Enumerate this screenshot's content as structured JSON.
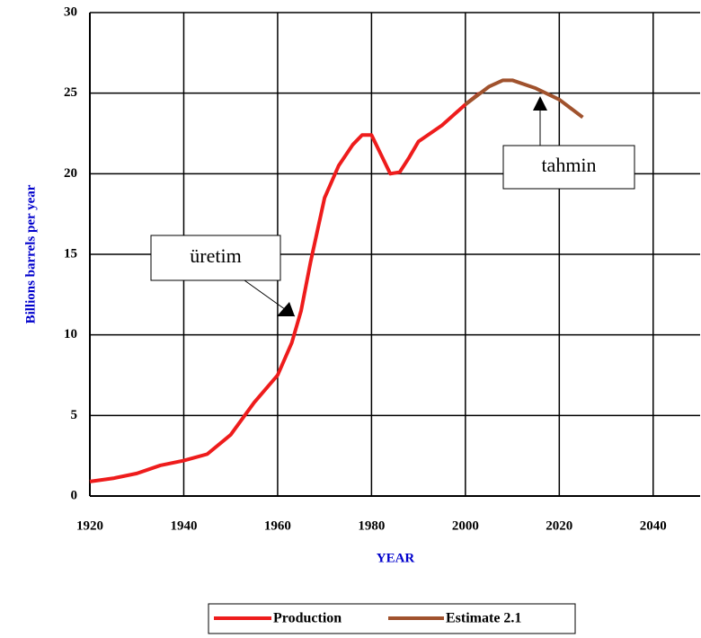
{
  "chart_data": {
    "type": "line",
    "xlabel": "YEAR",
    "ylabel": "Billions barrels per year",
    "xlim": [
      1920,
      2050
    ],
    "xticks": [
      1920,
      1940,
      1960,
      1980,
      2000,
      2020,
      2040
    ],
    "ylim": [
      0,
      30
    ],
    "yticks": [
      0,
      5,
      10,
      15,
      20,
      25,
      30
    ],
    "grid": true,
    "legend": "bottom",
    "series": [
      {
        "name": "Production",
        "color": "#ee1c1c",
        "x": [
          1920,
          1925,
          1930,
          1935,
          1940,
          1945,
          1950,
          1955,
          1960,
          1963,
          1965,
          1967,
          1970,
          1973,
          1976,
          1978,
          1980,
          1982,
          1984,
          1986,
          1988,
          1990,
          1995,
          2000,
          2003
        ],
        "values": [
          0.9,
          1.1,
          1.4,
          1.9,
          2.2,
          2.6,
          3.8,
          5.8,
          7.5,
          9.5,
          11.5,
          14.5,
          18.5,
          20.5,
          21.8,
          22.4,
          22.4,
          21.2,
          20.0,
          20.1,
          21.0,
          22.0,
          23.0,
          24.3,
          25.0
        ]
      },
      {
        "name": "Estimate 2.1",
        "color": "#a0522d",
        "x": [
          2000,
          2005,
          2008,
          2010,
          2015,
          2020,
          2025
        ],
        "values": [
          24.3,
          25.4,
          25.8,
          25.8,
          25.3,
          24.6,
          23.5
        ]
      }
    ],
    "annotations": [
      {
        "text": "üretim"
      },
      {
        "text": "tahmin"
      }
    ]
  }
}
